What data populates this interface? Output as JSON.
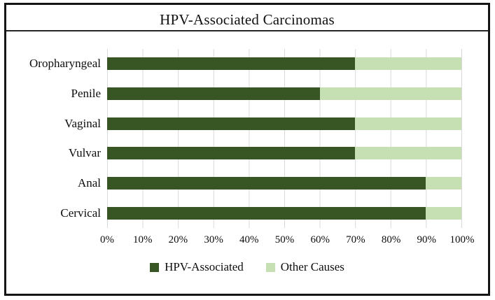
{
  "figure": {
    "title": "HPV-Associated Carcinomas"
  },
  "chart_data": {
    "type": "bar",
    "orientation": "horizontal",
    "stacked": true,
    "title": "HPV-Associated Carcinomas",
    "categories": [
      "Oropharyngeal",
      "Penile",
      "Vaginal",
      "Vulvar",
      "Anal",
      "Cervical"
    ],
    "series": [
      {
        "name": "HPV-Associated",
        "color": "#375623",
        "values": [
          70,
          60,
          70,
          70,
          90,
          90
        ]
      },
      {
        "name": "Other Causes",
        "color": "#c6e0b4",
        "values": [
          30,
          40,
          30,
          30,
          10,
          10
        ]
      }
    ],
    "x_ticks": [
      "0%",
      "10%",
      "20%",
      "30%",
      "40%",
      "50%",
      "60%",
      "70%",
      "80%",
      "90%",
      "100%"
    ],
    "xlim": [
      0,
      100
    ],
    "xlabel": "",
    "ylabel": "",
    "grid": "vertical",
    "legend_position": "bottom",
    "colors": {
      "gridline": "#d9d9d9",
      "frame_border": "#151515",
      "title_rule": "#262626",
      "text": "#0d0d0d"
    }
  }
}
